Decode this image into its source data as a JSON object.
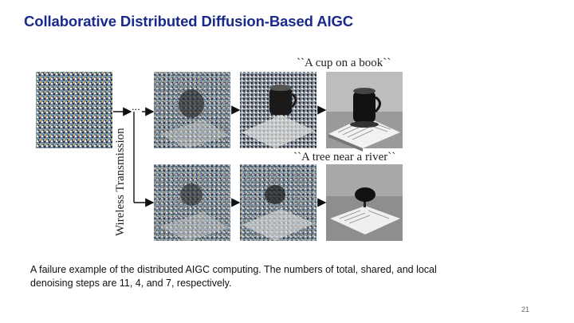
{
  "slide": {
    "title": "Collaborative Distributed Diffusion-Based AIGC",
    "caption": "A failure example of the distributed AIGC computing. The numbers of total, shared, and local denoising steps are 11, 4, and 7, respectively.",
    "page_number": "21"
  },
  "figure": {
    "prompt_top": "``A cup on a book``",
    "prompt_bottom": "``A tree near a river``",
    "vertical_label": "Wireless Transmission",
    "ellipsis": "...",
    "images": {
      "noise": "pure-noise-image",
      "top_step1": "noisy-cup-on-book-step-1",
      "top_step2": "noisy-cup-on-book-step-2",
      "top_final": "generated-cup-on-book",
      "bottom_step1": "noisy-cup-on-book-step-1",
      "bottom_step2": "noisy-cup-on-book-step-2",
      "bottom_final": "generated-tree-on-book"
    }
  }
}
